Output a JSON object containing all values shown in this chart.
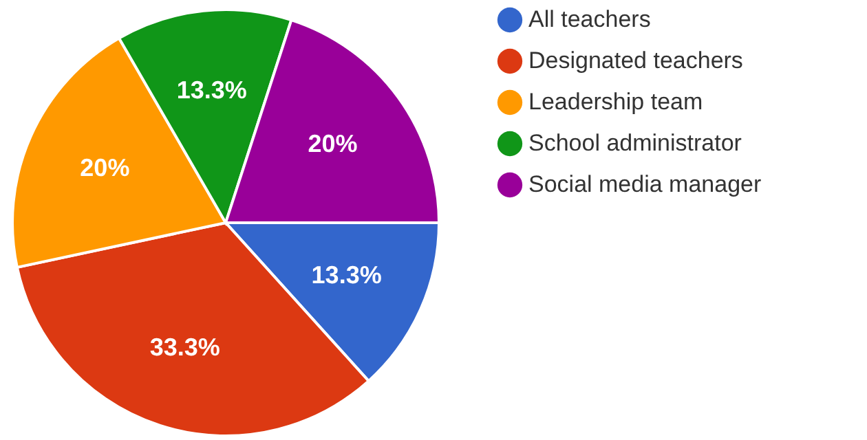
{
  "chart_data": {
    "type": "pie",
    "categories": [
      "All teachers",
      "Designated teachers",
      "Leadership team",
      "School administrator",
      "Social media manager"
    ],
    "values": [
      13.3,
      33.3,
      20,
      13.3,
      20
    ],
    "value_labels": [
      "13.3%",
      "33.3%",
      "20%",
      "13.3%",
      "20%"
    ],
    "colors": [
      "#3366cc",
      "#dc3912",
      "#ff9900",
      "#109618",
      "#990099"
    ],
    "legend": "right"
  }
}
